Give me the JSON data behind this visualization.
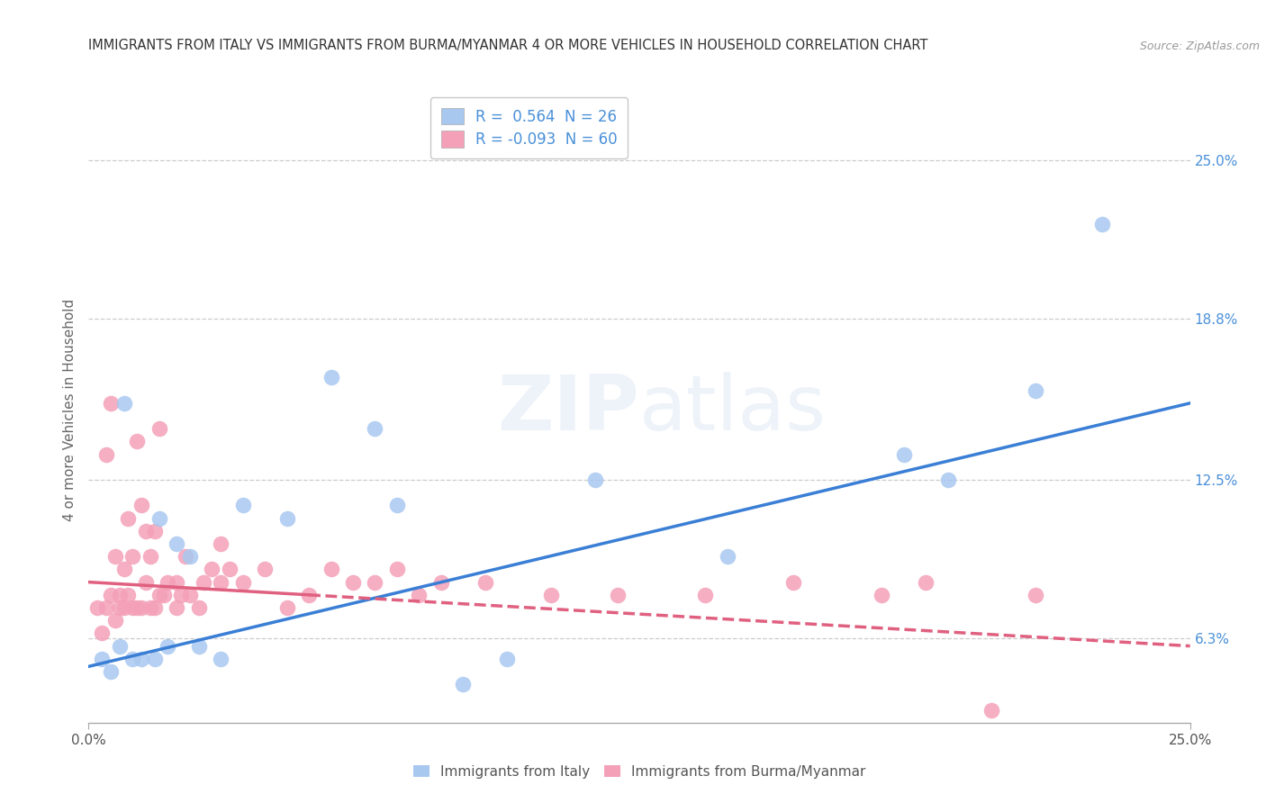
{
  "title": "IMMIGRANTS FROM ITALY VS IMMIGRANTS FROM BURMA/MYANMAR 4 OR MORE VEHICLES IN HOUSEHOLD CORRELATION CHART",
  "source": "Source: ZipAtlas.com",
  "ylabel": "4 or more Vehicles in Household",
  "yticks": [
    6.3,
    12.5,
    18.8,
    25.0
  ],
  "ytick_labels": [
    "6.3%",
    "12.5%",
    "18.8%",
    "25.0%"
  ],
  "xlim": [
    0.0,
    25.0
  ],
  "ylim": [
    3.0,
    27.5
  ],
  "legend_italy": "R =  0.564  N = 26",
  "legend_burma": "R = -0.093  N = 60",
  "color_italy": "#a8c8f0",
  "color_burma": "#f4a0b8",
  "line_italy": "#3a7fd5",
  "line_burma": "#e06080",
  "italy_x": [
    0.3,
    0.5,
    0.7,
    0.8,
    1.0,
    1.2,
    1.5,
    1.6,
    1.8,
    2.0,
    2.3,
    2.5,
    3.0,
    3.5,
    4.5,
    5.5,
    6.5,
    7.0,
    8.5,
    9.5,
    11.5,
    14.5,
    18.5,
    19.5,
    21.5,
    23.0
  ],
  "italy_y": [
    5.5,
    5.0,
    6.0,
    15.5,
    5.5,
    5.5,
    5.5,
    11.0,
    6.0,
    10.0,
    9.5,
    6.0,
    5.5,
    11.5,
    11.0,
    16.5,
    14.5,
    11.5,
    4.5,
    5.5,
    12.5,
    9.5,
    13.5,
    12.5,
    16.0,
    22.5
  ],
  "burma_x": [
    0.2,
    0.3,
    0.4,
    0.4,
    0.5,
    0.5,
    0.6,
    0.6,
    0.7,
    0.7,
    0.8,
    0.8,
    0.9,
    0.9,
    1.0,
    1.0,
    1.1,
    1.1,
    1.2,
    1.2,
    1.3,
    1.3,
    1.4,
    1.4,
    1.5,
    1.5,
    1.6,
    1.6,
    1.7,
    1.8,
    2.0,
    2.0,
    2.1,
    2.2,
    2.3,
    2.5,
    2.6,
    2.8,
    3.0,
    3.0,
    3.2,
    3.5,
    4.0,
    4.5,
    5.0,
    5.5,
    6.0,
    6.5,
    7.0,
    7.5,
    8.0,
    9.0,
    10.5,
    12.0,
    14.0,
    16.0,
    18.0,
    19.0,
    20.5,
    21.5
  ],
  "burma_y": [
    7.5,
    6.5,
    7.5,
    13.5,
    8.0,
    15.5,
    7.0,
    9.5,
    7.5,
    8.0,
    7.5,
    9.0,
    8.0,
    11.0,
    7.5,
    9.5,
    7.5,
    14.0,
    7.5,
    11.5,
    8.5,
    10.5,
    7.5,
    9.5,
    7.5,
    10.5,
    8.0,
    14.5,
    8.0,
    8.5,
    7.5,
    8.5,
    8.0,
    9.5,
    8.0,
    7.5,
    8.5,
    9.0,
    8.5,
    10.0,
    9.0,
    8.5,
    9.0,
    7.5,
    8.0,
    9.0,
    8.5,
    8.5,
    9.0,
    8.0,
    8.5,
    8.5,
    8.0,
    8.0,
    8.0,
    8.5,
    8.0,
    8.5,
    3.5,
    8.0
  ],
  "italy_line_x0": 0.0,
  "italy_line_x1": 25.0,
  "italy_line_y0": 5.2,
  "italy_line_y1": 15.5,
  "burma_line_x0": 0.0,
  "burma_line_x1": 25.0,
  "burma_line_y0": 8.5,
  "burma_line_y1": 6.0
}
